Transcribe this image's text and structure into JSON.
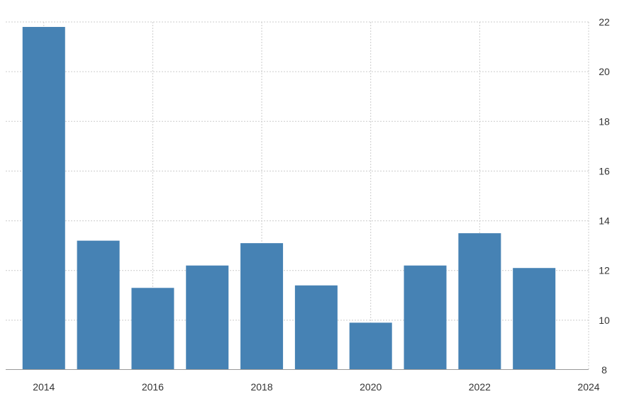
{
  "chart_data": {
    "type": "bar",
    "title": "",
    "xlabel": "",
    "ylabel": "",
    "x": [
      2014,
      2015,
      2016,
      2017,
      2018,
      2019,
      2020,
      2021,
      2022,
      2023
    ],
    "values": [
      21.8,
      13.2,
      11.3,
      12.2,
      13.1,
      11.4,
      9.9,
      12.2,
      13.5,
      12.1
    ],
    "ylim": [
      8,
      22
    ],
    "yticks": [
      "8",
      "10",
      "12",
      "14",
      "16",
      "18",
      "20",
      "22"
    ],
    "xlim": [
      2013.3,
      2024
    ],
    "xticks": [
      "2014",
      "2016",
      "2018",
      "2020",
      "2022",
      "2024"
    ],
    "y_axis_position": "right",
    "grid": true,
    "bar_color": "#4682B4",
    "grid_color": "#cccccc"
  }
}
